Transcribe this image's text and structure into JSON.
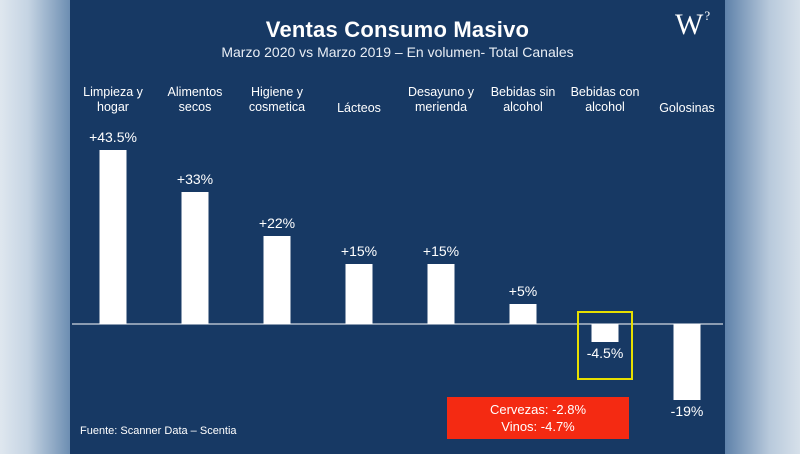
{
  "header": {
    "title": "Ventas Consumo Masivo",
    "subtitle": "Marzo 2020 vs Marzo 2019 – En volumen- Total Canales",
    "logo_text": "W",
    "logo_mark": "?"
  },
  "footer": {
    "source": "Fuente: Scanner Data – Scentia"
  },
  "callout": {
    "line1": "Cervezas: -2.8%",
    "line2": "Vinos: -4.7%",
    "background": "#f42a12"
  },
  "highlight_color": "#e8e000",
  "chart_data": {
    "type": "bar",
    "title": "Ventas Consumo Masivo",
    "subtitle": "Marzo 2020 vs Marzo 2019 – En volumen- Total Canales",
    "categories": [
      [
        "Limpieza y",
        "hogar"
      ],
      [
        "Alimentos",
        "secos"
      ],
      [
        "Higiene y",
        "cosmetica"
      ],
      [
        "Lácteos"
      ],
      [
        "Desayuno y",
        "merienda"
      ],
      [
        "Bebidas sin",
        "alcohol"
      ],
      [
        "Bebidas con",
        "alcohol"
      ],
      [
        "Golosinas"
      ]
    ],
    "values": [
      43.5,
      33,
      22,
      15,
      15,
      5,
      -4.5,
      -19
    ],
    "value_labels": [
      "+43.5%",
      "+33%",
      "+22%",
      "+15%",
      "+15%",
      "+5%",
      "-4.5%",
      "-19%"
    ],
    "highlighted_category_index": 6,
    "bar_color": "#ffffff",
    "grid": false,
    "xlabel": "",
    "ylabel": ""
  }
}
